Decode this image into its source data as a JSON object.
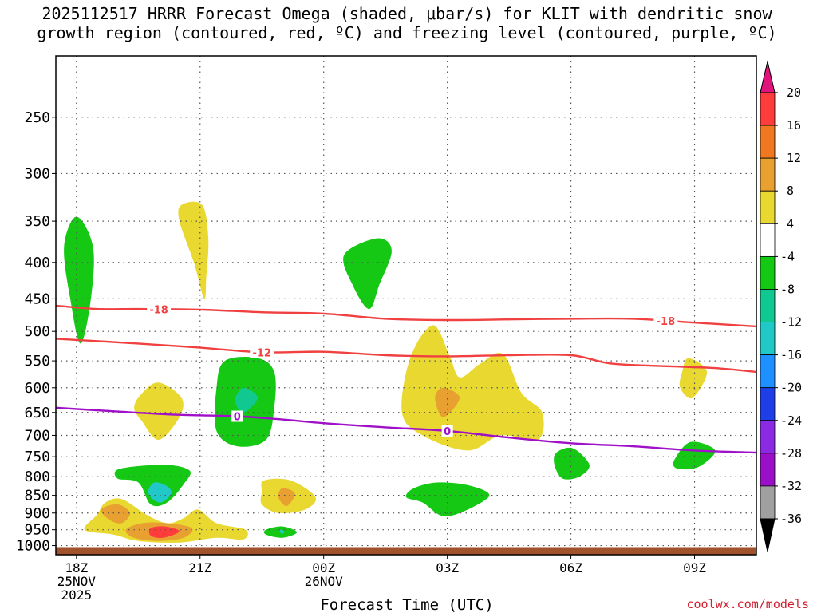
{
  "chart_data": {
    "type": "heatmap",
    "title_line1": "2025112517 HRRR Forecast Omega (shaded, μbar/s) for KLIT with dendritic snow",
    "title_line2": "growth region (contoured, red, ºC) and freezing level (contoured, purple, ºC)",
    "xlabel": "Forecast Time (UTC)",
    "ylabel": "",
    "credit": "coolwx.com/models",
    "x_axis": {
      "unit": "hours after 2025-11-25 18Z",
      "range": [
        -0.5,
        16.5
      ],
      "ticks": [
        {
          "value": 0,
          "lines": [
            "18Z",
            "25NOV",
            "2025"
          ]
        },
        {
          "value": 3,
          "lines": [
            "21Z"
          ]
        },
        {
          "value": 6,
          "lines": [
            "00Z",
            "26NOV"
          ]
        },
        {
          "value": 9,
          "lines": [
            "03Z"
          ]
        },
        {
          "value": 12,
          "lines": [
            "06Z"
          ]
        },
        {
          "value": 15,
          "lines": [
            "09Z"
          ]
        }
      ]
    },
    "y_axis": {
      "unit": "hPa",
      "scale": "log",
      "reversed": true,
      "range": [
        1030,
        200
      ],
      "ticks": [
        250,
        300,
        350,
        400,
        450,
        500,
        550,
        600,
        650,
        700,
        750,
        800,
        850,
        900,
        950,
        1000
      ]
    },
    "grid": true,
    "colorbar": {
      "ticks": [
        "20",
        "16",
        "12",
        "8",
        "4",
        "-4",
        "-8",
        "-12",
        "-16",
        "-20",
        "-24",
        "-28",
        "-32",
        "-36"
      ],
      "colors": [
        "#ff3b3b",
        "#f07820",
        "#e8a030",
        "#e8d830",
        "#ffffff",
        "#14c814",
        "#10c890",
        "#20c8c8",
        "#1e90ff",
        "#1e3ee6",
        "#8a2be2",
        "#9a10c8",
        "#a0a0a0"
      ],
      "top_arrow_color": "#e0147a",
      "bottom_arrow_color": "#000000"
    },
    "omega_blobs": [
      {
        "color": "#14c814",
        "points": [
          [
            0,
            345
          ],
          [
            0.4,
            380
          ],
          [
            0.35,
            450
          ],
          [
            0.1,
            520
          ],
          [
            -0.15,
            450
          ],
          [
            -0.3,
            380
          ]
        ]
      },
      {
        "color": "#e8d830",
        "points": [
          [
            2.55,
            332
          ],
          [
            3.05,
            332
          ],
          [
            3.2,
            370
          ],
          [
            3.15,
            420
          ],
          [
            3.1,
            450
          ],
          [
            2.85,
            400
          ],
          [
            2.5,
            350
          ]
        ]
      },
      {
        "color": "#14c814",
        "points": [
          [
            7.3,
            370
          ],
          [
            7.65,
            385
          ],
          [
            7.35,
            430
          ],
          [
            7.1,
            465
          ],
          [
            6.7,
            430
          ],
          [
            6.5,
            390
          ]
        ]
      },
      {
        "color": "#e8d830",
        "points": [
          [
            1.6,
            610
          ],
          [
            2.0,
            590
          ],
          [
            2.55,
            620
          ],
          [
            2.5,
            660
          ],
          [
            2.0,
            710
          ],
          [
            1.6,
            670
          ],
          [
            1.4,
            640
          ]
        ]
      },
      {
        "color": "#14c814",
        "points": [
          [
            3.6,
            550
          ],
          [
            4.4,
            545
          ],
          [
            4.8,
            570
          ],
          [
            4.8,
            640
          ],
          [
            4.6,
            710
          ],
          [
            3.9,
            725
          ],
          [
            3.4,
            690
          ],
          [
            3.4,
            600
          ]
        ]
      },
      {
        "color": "#10c890",
        "points": [
          [
            4.05,
            600
          ],
          [
            4.4,
            620
          ],
          [
            4.05,
            650
          ],
          [
            3.85,
            625
          ]
        ]
      },
      {
        "color": "#e8d830",
        "points": [
          [
            8.65,
            490
          ],
          [
            9.05,
            540
          ],
          [
            9.3,
            580
          ],
          [
            9.8,
            555
          ],
          [
            10.35,
            538
          ],
          [
            10.8,
            610
          ],
          [
            11.3,
            650
          ],
          [
            11.2,
            710
          ],
          [
            10.3,
            700
          ],
          [
            9.5,
            735
          ],
          [
            8.4,
            700
          ],
          [
            7.9,
            650
          ],
          [
            8.1,
            545
          ]
        ]
      },
      {
        "color": "#e8a030",
        "points": [
          [
            8.9,
            600
          ],
          [
            9.3,
            620
          ],
          [
            8.9,
            660
          ],
          [
            8.7,
            620
          ]
        ]
      },
      {
        "color": "#e8d830",
        "points": [
          [
            14.85,
            545
          ],
          [
            15.3,
            570
          ],
          [
            14.95,
            620
          ],
          [
            14.65,
            600
          ],
          [
            14.7,
            570
          ]
        ]
      },
      {
        "color": "#14c814",
        "points": [
          [
            11.65,
            740
          ],
          [
            12.05,
            730
          ],
          [
            12.45,
            770
          ],
          [
            12.2,
            800
          ],
          [
            11.8,
            805
          ],
          [
            11.6,
            770
          ]
        ]
      },
      {
        "color": "#14c814",
        "points": [
          [
            14.9,
            715
          ],
          [
            15.5,
            735
          ],
          [
            15.1,
            775
          ],
          [
            14.6,
            780
          ],
          [
            14.5,
            760
          ]
        ]
      },
      {
        "color": "#14c814",
        "points": [
          [
            1.05,
            780
          ],
          [
            2.15,
            770
          ],
          [
            2.75,
            785
          ],
          [
            2.6,
            820
          ],
          [
            2.2,
            870
          ],
          [
            1.8,
            875
          ],
          [
            1.5,
            815
          ],
          [
            1.0,
            805
          ]
        ]
      },
      {
        "color": "#20c8c8",
        "points": [
          [
            1.9,
            815
          ],
          [
            2.2,
            825
          ],
          [
            2.3,
            845
          ],
          [
            2.05,
            870
          ],
          [
            1.8,
            855
          ],
          [
            1.75,
            835
          ]
        ]
      },
      {
        "color": "#e8d830",
        "points": [
          [
            4.55,
            810
          ],
          [
            5.2,
            810
          ],
          [
            5.8,
            855
          ],
          [
            5.55,
            890
          ],
          [
            4.9,
            900
          ],
          [
            4.5,
            875
          ],
          [
            4.5,
            840
          ]
        ]
      },
      {
        "color": "#e8a030",
        "points": [
          [
            5.0,
            830
          ],
          [
            5.3,
            845
          ],
          [
            5.1,
            880
          ],
          [
            4.9,
            855
          ]
        ]
      },
      {
        "color": "#14c814",
        "points": [
          [
            8.2,
            830
          ],
          [
            8.8,
            815
          ],
          [
            9.6,
            825
          ],
          [
            10.0,
            855
          ],
          [
            9.0,
            910
          ],
          [
            8.4,
            870
          ],
          [
            8.0,
            855
          ]
        ]
      },
      {
        "color": "#e8d830",
        "points": [
          [
            0.2,
            950
          ],
          [
            0.5,
            905
          ],
          [
            0.7,
            870
          ],
          [
            1.1,
            860
          ],
          [
            1.7,
            905
          ],
          [
            2.2,
            930
          ],
          [
            2.6,
            915
          ],
          [
            2.95,
            890
          ],
          [
            3.4,
            930
          ],
          [
            4.1,
            950
          ],
          [
            4.05,
            980
          ],
          [
            3.4,
            975
          ],
          [
            2.5,
            990
          ],
          [
            1.5,
            985
          ],
          [
            0.9,
            965
          ]
        ]
      },
      {
        "color": "#e8a030",
        "points": [
          [
            0.6,
            890
          ],
          [
            1.0,
            875
          ],
          [
            1.3,
            900
          ],
          [
            1.1,
            930
          ],
          [
            0.8,
            920
          ]
        ]
      },
      {
        "color": "#e8a030",
        "points": [
          [
            1.2,
            950
          ],
          [
            1.6,
            930
          ],
          [
            2.2,
            930
          ],
          [
            2.8,
            945
          ],
          [
            2.6,
            975
          ],
          [
            2.0,
            985
          ],
          [
            1.4,
            975
          ]
        ]
      },
      {
        "color": "#ff3b3b",
        "points": [
          [
            1.8,
            945
          ],
          [
            2.15,
            940
          ],
          [
            2.5,
            955
          ],
          [
            2.1,
            975
          ],
          [
            1.8,
            968
          ]
        ]
      },
      {
        "color": "#14c814",
        "points": [
          [
            4.6,
            950
          ],
          [
            5.0,
            940
          ],
          [
            5.35,
            958
          ],
          [
            5.0,
            975
          ],
          [
            4.6,
            965
          ]
        ]
      },
      {
        "color": "#20c8c8",
        "points": [
          [
            4.93,
            950
          ],
          [
            5.05,
            955
          ],
          [
            4.98,
            963
          ]
        ]
      }
    ],
    "ground": {
      "color": "#a0522d",
      "top_hPa": 1005
    },
    "isotherms": [
      {
        "label": "-18",
        "color": "#f04040",
        "label_at": [
          2.0,
          14.3
        ],
        "points": [
          [
            -0.5,
            460
          ],
          [
            0.5,
            465
          ],
          [
            1.5,
            465
          ],
          [
            3.0,
            466
          ],
          [
            4.5,
            470
          ],
          [
            6.0,
            472
          ],
          [
            7.5,
            480
          ],
          [
            9.0,
            482
          ],
          [
            10.5,
            481
          ],
          [
            12.0,
            480
          ],
          [
            13.5,
            480
          ],
          [
            15.0,
            486
          ],
          [
            16.5,
            492
          ]
        ]
      },
      {
        "label": "-12",
        "color": "#f04040",
        "label_at": [
          4.5
        ],
        "points": [
          [
            -0.5,
            512
          ],
          [
            1.5,
            520
          ],
          [
            3.0,
            527
          ],
          [
            4.5,
            535
          ],
          [
            6.0,
            534
          ],
          [
            7.5,
            540
          ],
          [
            9.0,
            542
          ],
          [
            10.5,
            540
          ],
          [
            12.0,
            540
          ],
          [
            13.0,
            555
          ],
          [
            14.5,
            560
          ],
          [
            15.5,
            563
          ],
          [
            16.5,
            570
          ]
        ]
      },
      {
        "label": "0",
        "color": "#a010c8",
        "label_at": [
          3.9,
          9.0
        ],
        "points": [
          [
            -0.5,
            640
          ],
          [
            1.0,
            648
          ],
          [
            2.5,
            655
          ],
          [
            3.9,
            658
          ],
          [
            5.0,
            665
          ],
          [
            6.0,
            673
          ],
          [
            7.5,
            682
          ],
          [
            9.0,
            690
          ],
          [
            10.5,
            705
          ],
          [
            12.0,
            718
          ],
          [
            13.5,
            725
          ],
          [
            15.0,
            735
          ],
          [
            16.5,
            740
          ]
        ]
      }
    ]
  }
}
